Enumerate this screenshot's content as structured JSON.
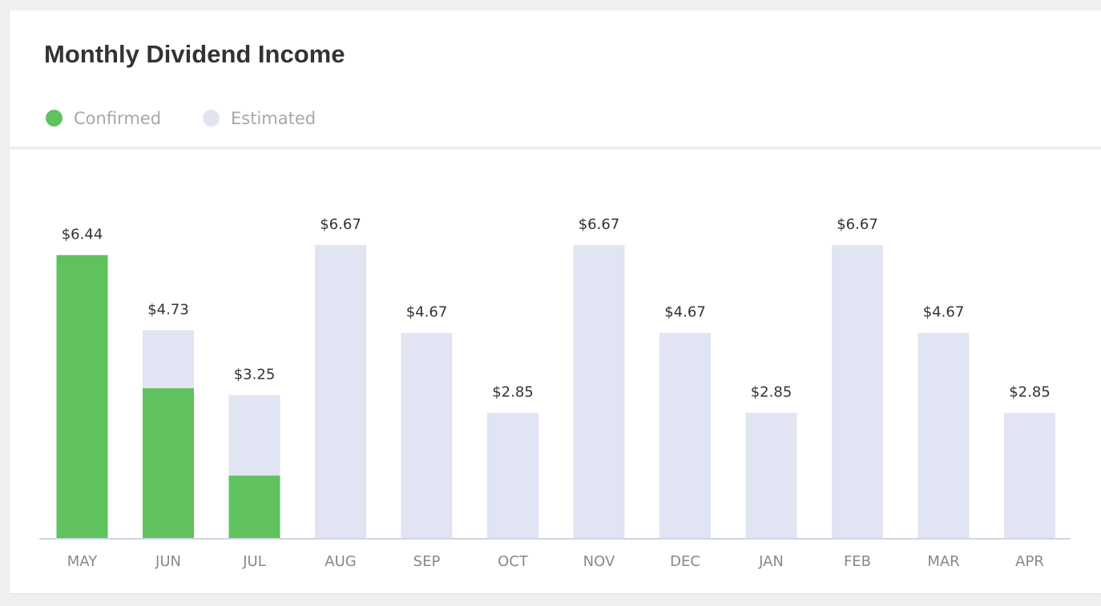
{
  "header": {
    "title": "Monthly Dividend Income"
  },
  "legend": {
    "items": [
      {
        "label": "Confirmed",
        "color": "#5fc25f"
      },
      {
        "label": "Estimated",
        "color": "#e1e4f2"
      }
    ]
  },
  "chart_data": {
    "type": "bar",
    "stacked": true,
    "categories": [
      "MAY",
      "JUN",
      "JUL",
      "AUG",
      "SEP",
      "OCT",
      "NOV",
      "DEC",
      "JAN",
      "FEB",
      "MAR",
      "APR"
    ],
    "series": [
      {
        "name": "Confirmed",
        "color": "#5fc25f",
        "values": [
          6.44,
          3.41,
          1.42,
          0,
          0,
          0,
          0,
          0,
          0,
          0,
          0,
          0
        ]
      },
      {
        "name": "Estimated",
        "color": "#e1e4f2",
        "values": [
          0,
          1.32,
          1.83,
          6.67,
          4.67,
          2.85,
          6.67,
          4.67,
          2.85,
          6.67,
          4.67,
          2.85
        ]
      }
    ],
    "totals": [
      6.44,
      4.73,
      3.25,
      6.67,
      4.67,
      2.85,
      6.67,
      4.67,
      2.85,
      6.67,
      4.67,
      2.85
    ],
    "data_labels": [
      "$6.44",
      "$4.73",
      "$3.25",
      "$6.67",
      "$4.67",
      "$2.85",
      "$6.67",
      "$4.67",
      "$2.85",
      "$6.67",
      "$4.67",
      "$2.85"
    ],
    "ylim": [
      0,
      6.67
    ],
    "grid": false,
    "legend_position": "top-left",
    "axis_color": "#cfd5e6",
    "label_color": "#333333",
    "tick_color": "#888888"
  }
}
